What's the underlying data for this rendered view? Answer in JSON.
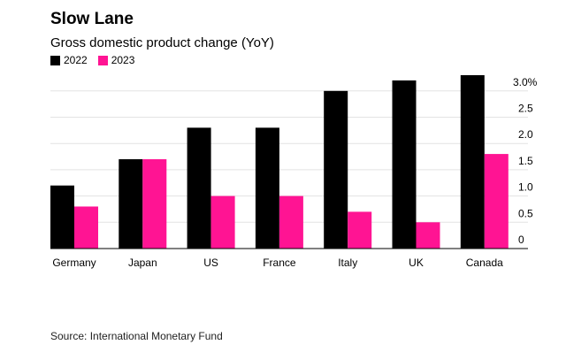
{
  "header": {
    "title": "Slow Lane",
    "subtitle": "Gross domestic product change (YoY)"
  },
  "source": "Source: International Monetary Fund",
  "chart_data": {
    "type": "bar",
    "title": "Slow Lane",
    "subtitle": "Gross domestic product change (YoY)",
    "xlabel": "",
    "ylabel": "",
    "categories": [
      "Germany",
      "Japan",
      "US",
      "France",
      "Italy",
      "UK",
      "Canada"
    ],
    "series": [
      {
        "name": "2022",
        "color": "#000000",
        "values": [
          1.2,
          1.7,
          2.3,
          2.3,
          3.0,
          3.2,
          3.3
        ]
      },
      {
        "name": "2023",
        "color": "#ff1493",
        "values": [
          0.8,
          1.7,
          1.0,
          1.0,
          0.7,
          0.5,
          1.8
        ]
      }
    ],
    "ylim": [
      0,
      3.3
    ],
    "yticks": [
      0,
      0.5,
      1.0,
      1.5,
      2.0,
      2.5,
      3.0
    ],
    "ytick_labels": [
      "0",
      "0.5",
      "1.0",
      "1.5",
      "2.0",
      "2.5",
      "3.0%"
    ],
    "y_axis_side": "right",
    "grid": true,
    "legend": "top-left"
  }
}
